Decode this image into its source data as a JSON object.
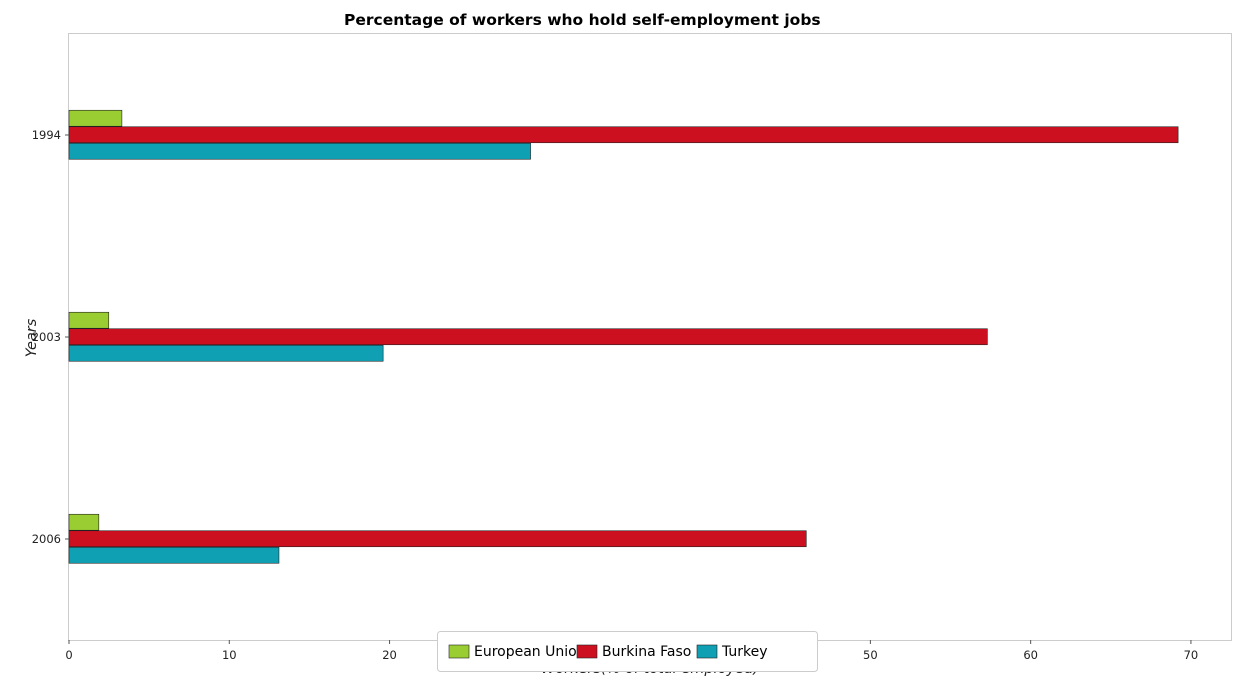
{
  "chart_data": {
    "type": "bar",
    "orientation": "horizontal",
    "title": "Percentage of workers who hold self-employment jobs",
    "xlabel": "Workers(% of total employed)",
    "ylabel": "Years",
    "categories": [
      "1994",
      "2003",
      "2006"
    ],
    "series": [
      {
        "name": "European Union",
        "color": "#9acd32",
        "values": [
          3.3,
          2.48,
          1.86
        ]
      },
      {
        "name": "Burkina Faso",
        "color": "#cc1020",
        "values": [
          69.2,
          57.3,
          46.0
        ]
      },
      {
        "name": "Turkey",
        "color": "#10a0b4",
        "values": [
          28.8,
          19.6,
          13.1
        ]
      }
    ],
    "xlim": [
      0,
      72.5
    ],
    "xticks": [
      0,
      10,
      20,
      30,
      40,
      50,
      60,
      70
    ],
    "grid": false,
    "legend_position": "bottom-center"
  }
}
